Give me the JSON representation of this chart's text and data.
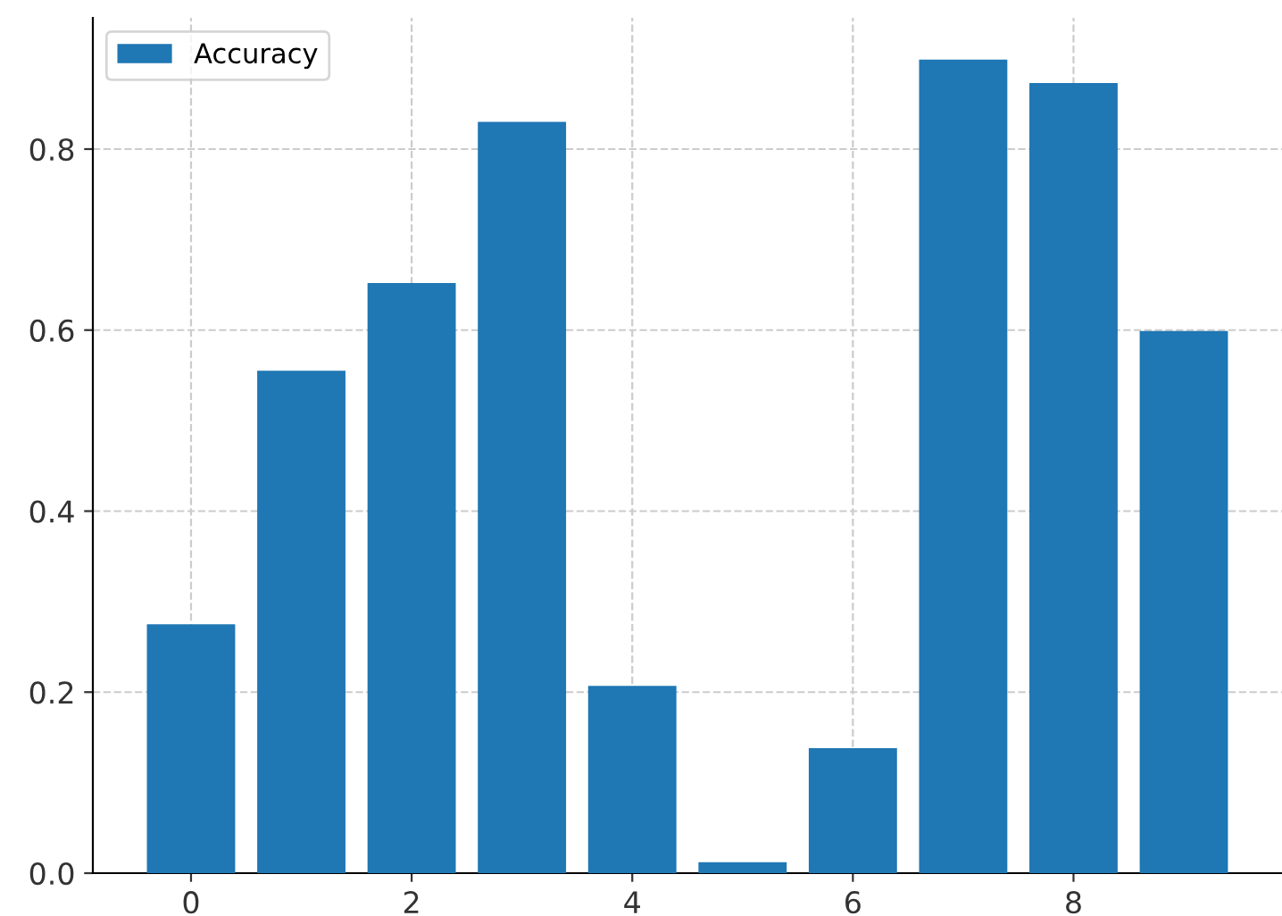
{
  "chart_data": {
    "type": "bar",
    "x": [
      0,
      1,
      2,
      3,
      4,
      5,
      6,
      7,
      8,
      9
    ],
    "series": [
      {
        "name": "Accuracy",
        "color": "#1f77b4",
        "values": [
          0.275,
          0.555,
          0.652,
          0.83,
          0.207,
          0.012,
          0.138,
          0.899,
          0.873,
          0.599
        ]
      }
    ],
    "xlim": [
      -0.89,
      9.89
    ],
    "xticks": [
      0,
      2,
      4,
      6,
      8
    ],
    "ylim": [
      0,
      0.945
    ],
    "yticks": [
      {
        "value": 0,
        "label": "0.0"
      },
      0.2,
      0.4,
      0.6,
      0.8
    ],
    "grid": true,
    "legend": "top left"
  }
}
